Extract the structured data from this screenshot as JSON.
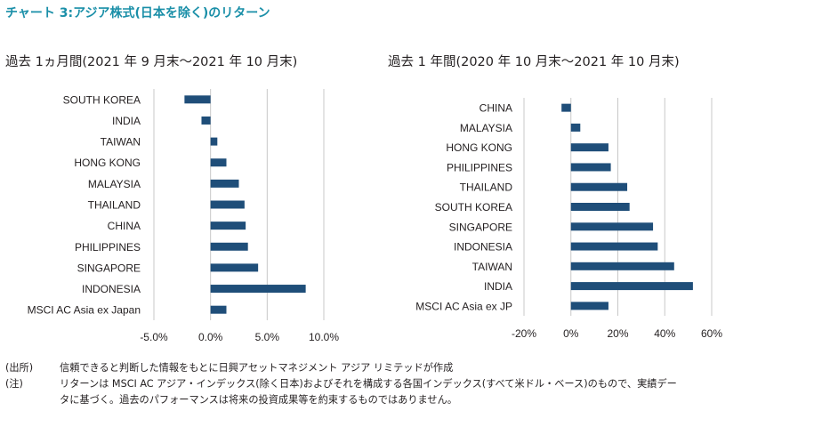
{
  "header": {
    "title": "チャート 3:アジア株式(日本を除く)のリターン",
    "subtitle_left": "過去 1ヵ月間(2021 年 9 月末〜2021 年 10 月末)",
    "subtitle_right": "過去 1 年間(2020 年 10 月末〜2021 年 10 月末)"
  },
  "chart_data": [
    {
      "type": "bar",
      "orientation": "horizontal",
      "categories": [
        "SOUTH KOREA",
        "INDIA",
        "TAIWAN",
        "HONG KONG",
        "MALAYSIA",
        "THAILAND",
        "CHINA",
        "PHILIPPINES",
        "SINGAPORE",
        "INDONESIA",
        "MSCI AC Asia ex Japan"
      ],
      "values": [
        -2.3,
        -0.8,
        0.6,
        1.4,
        2.5,
        3.0,
        3.1,
        3.3,
        4.2,
        8.4,
        1.4
      ],
      "xlim": [
        -5,
        10
      ],
      "xticks": [
        "-5.0%",
        "0.0%",
        "5.0%",
        "10.0%"
      ],
      "xtick_values": [
        -5,
        0,
        5,
        10
      ],
      "bar_color": "#1f4e79",
      "grid": true
    },
    {
      "type": "bar",
      "orientation": "horizontal",
      "categories": [
        "CHINA",
        "MALAYSIA",
        "HONG KONG",
        "PHILIPPINES",
        "THAILAND",
        "SOUTH KOREA",
        "SINGAPORE",
        "INDONESIA",
        "TAIWAN",
        "INDIA",
        "MSCI AC Asia ex JP"
      ],
      "values": [
        -4,
        4,
        16,
        17,
        24,
        25,
        35,
        37,
        44,
        52,
        16
      ],
      "xlim": [
        -20,
        60
      ],
      "xticks": [
        "-20%",
        "0%",
        "20%",
        "40%",
        "60%"
      ],
      "xtick_values": [
        -20,
        0,
        20,
        40,
        60
      ],
      "bar_color": "#1f4e79",
      "grid": true
    }
  ],
  "notes": [
    {
      "key": "(出所)",
      "text": "信頼できると判断した情報をもとに日興アセットマネジメント アジア リミテッドが作成"
    },
    {
      "key": "(注)",
      "text": "リターンは MSCI AC アジア・インデックス(除く日本)およびそれを構成する各国インデックス(すべて米ドル・ベース)のもので、実績デー"
    },
    {
      "key": "",
      "text": "タに基づく。過去のパフォーマンスは将来の投資成果等を約束するものではありません。"
    }
  ]
}
